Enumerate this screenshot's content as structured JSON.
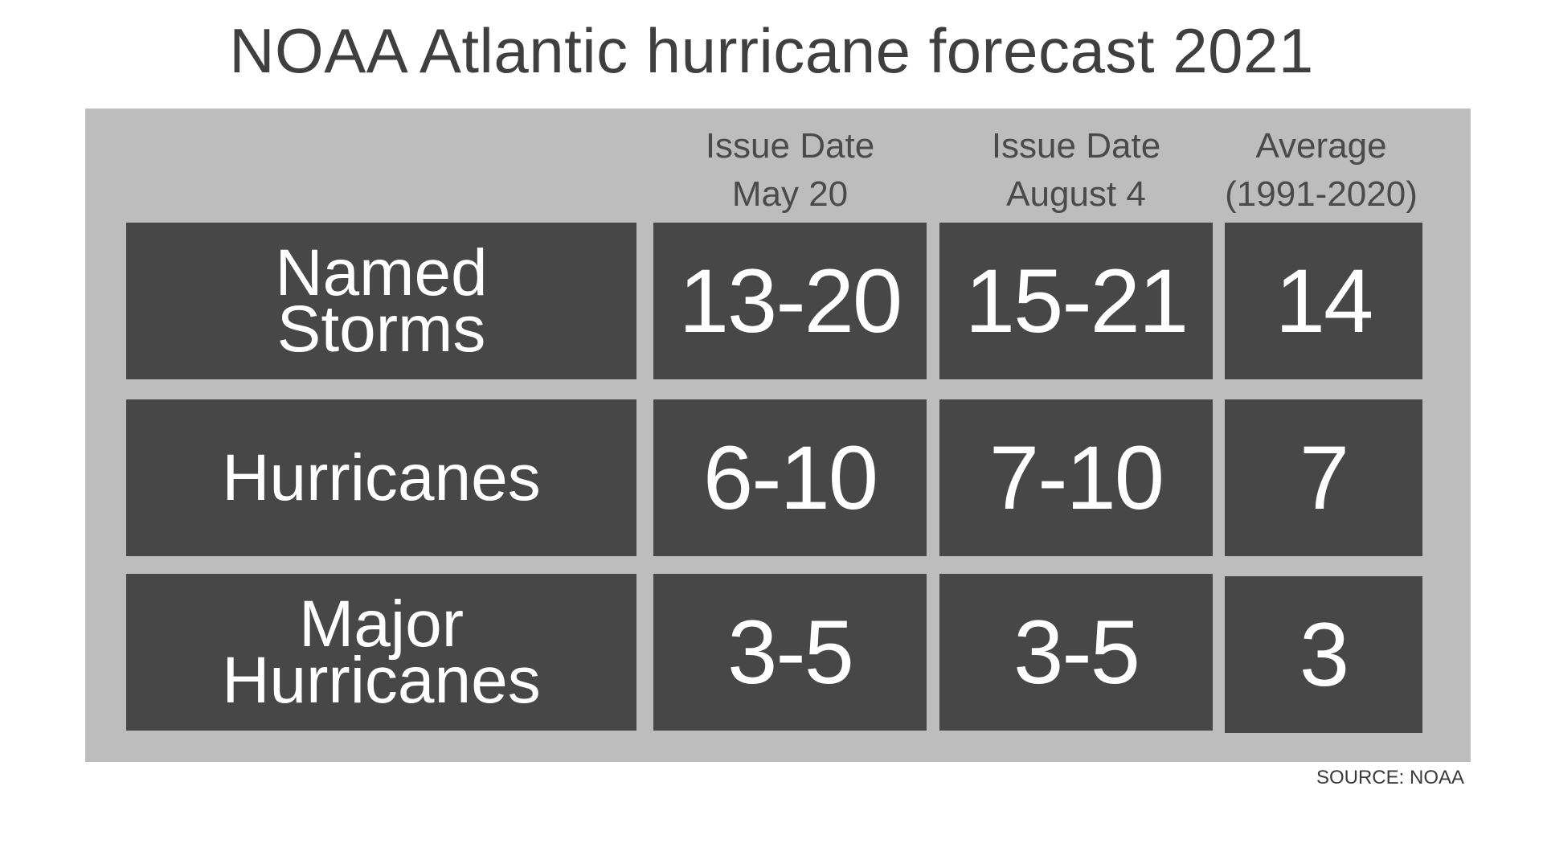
{
  "chart_data": {
    "type": "table",
    "title": "NOAA Atlantic hurricane forecast 2021",
    "columns": [
      {
        "line1": "Issue Date",
        "line2": "May 20"
      },
      {
        "line1": "Issue Date",
        "line2": "August 4"
      },
      {
        "line1": "Average",
        "line2": "(1991-2020)"
      }
    ],
    "rows": [
      {
        "label_line1": "Named",
        "label_line2": "Storms",
        "values": [
          "13-20",
          "15-21",
          "14"
        ]
      },
      {
        "label_line1": "Hurricanes",
        "label_line2": "",
        "values": [
          "6-10",
          "7-10",
          "7"
        ]
      },
      {
        "label_line1": "Major",
        "label_line2": "Hurricanes",
        "values": [
          "3-5",
          "3-5",
          "3"
        ]
      }
    ],
    "source": "SOURCE: NOAA"
  },
  "colors": {
    "panel": "#bdbdbd",
    "cell": "#474747",
    "cell_text": "#ffffff",
    "title_text": "#3f3f3f"
  }
}
